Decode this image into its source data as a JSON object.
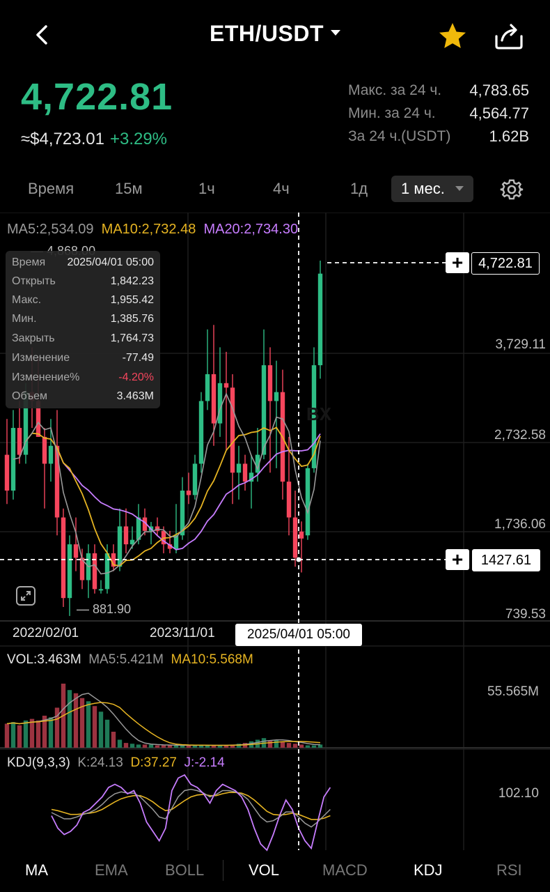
{
  "header": {
    "pair": "ETH/USDT"
  },
  "ticker": {
    "last_price": "4,722.81",
    "usd_value": "≈$4,723.01",
    "change_pct": "+3.29%",
    "high_label": "Макс. за 24 ч.",
    "high_value": "4,783.65",
    "low_label": "Мин. за 24 ч.",
    "low_value": "4,564.77",
    "volume_label": "За 24 ч.(USDT)",
    "volume_value": "1.62B"
  },
  "timeframes": {
    "items": [
      "Время",
      "15м",
      "1ч",
      "4ч",
      "1д"
    ],
    "active": "1 мес."
  },
  "ma_legend": {
    "ma5": "MA5:2,534.09",
    "ma10": "MA10:2,732.48",
    "ma20": "MA20:2,734.30"
  },
  "tooltip": {
    "rows": [
      {
        "k": "Время",
        "v": "2025/04/01 05:00"
      },
      {
        "k": "Открыть",
        "v": "1,842.23"
      },
      {
        "k": "Макс.",
        "v": "1,955.42"
      },
      {
        "k": "Мин.",
        "v": "1,385.76"
      },
      {
        "k": "Закрыть",
        "v": "1,764.73"
      },
      {
        "k": "Изменение",
        "v": "-77.49"
      },
      {
        "k": "Изменение%",
        "v": "-4.20%"
      },
      {
        "k": "Объем",
        "v": "3.463M"
      }
    ]
  },
  "price_axis": {
    "peak_label": "4,868.00",
    "current_tag": "4,722.81",
    "level_1": "3,729.11",
    "level_2": "2,732.58",
    "level_3": "1,736.06",
    "crosshair_tag": "1427.61",
    "bottom": "739.53",
    "low_label": "881.90"
  },
  "time_axis": {
    "d1": "2022/02/01",
    "d2": "2023/11/01",
    "crosshair_date": "2025/04/01 05:00"
  },
  "volume": {
    "vol": "VOL:3.463M",
    "ma5": "MA5:5.421M",
    "ma10": "MA10:5.568M",
    "max": "55.565M"
  },
  "kdj": {
    "name": "KDJ(9,3,3)",
    "k": "K:24.13",
    "d": "D:37.27",
    "j": "J:-2.14",
    "max": "102.10"
  },
  "indicators": {
    "items": [
      "MA",
      "EMA",
      "BOLL",
      "VOL",
      "MACD",
      "KDJ",
      "RSI"
    ]
  },
  "colors": {
    "up": "#2ebd85",
    "down": "#f6465d",
    "ma5": "#9a9a9a",
    "ma10": "#e6b422",
    "ma20": "#c77dff",
    "star": "#f0b90b"
  }
}
